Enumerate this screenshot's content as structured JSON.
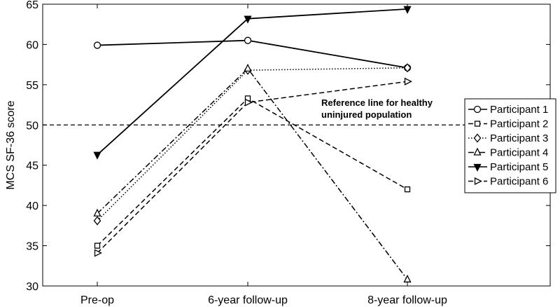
{
  "chart_data": {
    "type": "line",
    "title": "",
    "xlabel": "",
    "ylabel": "MCS SF-36 score",
    "categories": [
      "Pre-op",
      "6-year follow-up",
      "8-year follow-up"
    ],
    "ylim": [
      30,
      65
    ],
    "yticks": [
      30,
      35,
      40,
      45,
      50,
      55,
      60,
      65
    ],
    "grid": false,
    "legend_position": "right",
    "series": [
      {
        "name": "Participant 1",
        "values": [
          59.9,
          60.5,
          57.1
        ],
        "marker": "circle",
        "dash": "solid"
      },
      {
        "name": "Participant 2",
        "values": [
          35.0,
          53.3,
          42.0
        ],
        "marker": "square",
        "dash": "dashed"
      },
      {
        "name": "Participant 3",
        "values": [
          38.1,
          56.8,
          57.1
        ],
        "marker": "diamond",
        "dash": "dotted"
      },
      {
        "name": "Participant 4",
        "values": [
          39.0,
          57.0,
          30.8
        ],
        "marker": "triangle-up",
        "dash": "dashdot"
      },
      {
        "name": "Participant 5",
        "values": [
          46.3,
          63.2,
          64.4
        ],
        "marker": "triangle-down",
        "dash": "solid"
      },
      {
        "name": "Participant 6",
        "values": [
          34.1,
          52.8,
          55.4
        ],
        "marker": "triangle-right",
        "dash": "dashed"
      }
    ],
    "reference_line": {
      "value": 50,
      "label_lines": [
        "Reference line for healthy",
        "uninjured population"
      ]
    }
  }
}
